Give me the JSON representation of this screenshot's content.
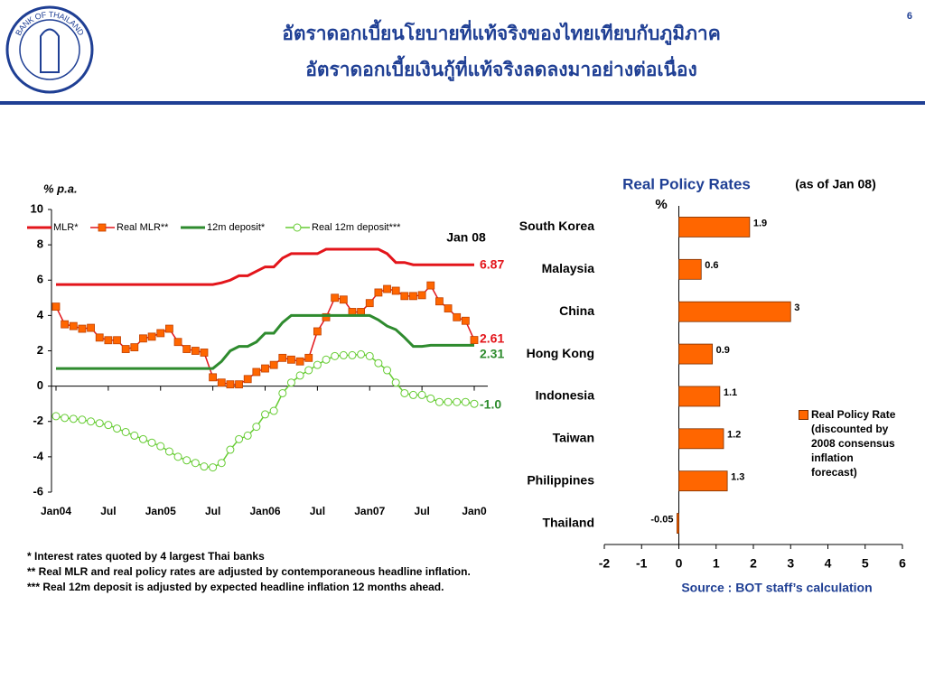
{
  "header": {
    "title_line1": "อัตราดอกเบี้ยนโยบายที่แท้จริงของไทยเทียบกับภูมิภาค",
    "title_line2": "อัตราดอกเบี้ยเงินกู้ที่แท้จริงลดลงมาอย่างต่อเนื่อง",
    "page_number": "6",
    "logo_text": "BANK OF THAILAND"
  },
  "chart_data": [
    {
      "type": "line",
      "y_label": "% p.a.",
      "categories": [
        "Jan04",
        null,
        null,
        null,
        null,
        null,
        "Jul",
        null,
        null,
        null,
        null,
        null,
        "Jan05",
        null,
        null,
        null,
        null,
        null,
        "Jul",
        null,
        null,
        null,
        null,
        null,
        "Jan06",
        null,
        null,
        null,
        null,
        null,
        "Jul",
        null,
        null,
        null,
        null,
        null,
        "Jan07",
        null,
        null,
        null,
        null,
        null,
        "Jul",
        null,
        null,
        null,
        null,
        null,
        "Jan0"
      ],
      "series": [
        {
          "name": "MLR*",
          "color": "#e3151b",
          "marker": null,
          "values": [
            5.75,
            5.75,
            5.75,
            5.75,
            5.75,
            5.75,
            5.75,
            5.75,
            5.75,
            5.75,
            5.75,
            5.75,
            5.75,
            5.75,
            5.75,
            5.75,
            5.75,
            5.75,
            5.75,
            5.85,
            6.0,
            6.25,
            6.25,
            6.5,
            6.75,
            6.75,
            7.25,
            7.5,
            7.5,
            7.5,
            7.5,
            7.75,
            7.75,
            7.75,
            7.75,
            7.75,
            7.75,
            7.75,
            7.5,
            7.0,
            7.0,
            6.87,
            6.87,
            6.87,
            6.87,
            6.87,
            6.87,
            6.87,
            6.87
          ]
        },
        {
          "name": "Real MLR**",
          "color": "#e3151b",
          "marker": "square",
          "marker_color": "#ff6600",
          "values": [
            4.5,
            3.5,
            3.4,
            3.25,
            3.3,
            2.75,
            2.6,
            2.6,
            2.1,
            2.2,
            2.7,
            2.8,
            3.0,
            3.25,
            2.5,
            2.1,
            2.0,
            1.9,
            0.5,
            0.2,
            0.1,
            0.1,
            0.4,
            0.8,
            1.0,
            1.2,
            1.6,
            1.5,
            1.4,
            1.6,
            3.1,
            3.9,
            5.0,
            4.9,
            4.2,
            4.2,
            4.7,
            5.3,
            5.5,
            5.4,
            5.1,
            5.1,
            5.15,
            5.7,
            4.8,
            4.4,
            3.9,
            3.7,
            2.61
          ]
        },
        {
          "name": "12m deposit*",
          "color": "#2e8b2e",
          "marker": null,
          "values": [
            1.0,
            1.0,
            1.0,
            1.0,
            1.0,
            1.0,
            1.0,
            1.0,
            1.0,
            1.0,
            1.0,
            1.0,
            1.0,
            1.0,
            1.0,
            1.0,
            1.0,
            1.0,
            1.0,
            1.4,
            2.0,
            2.25,
            2.25,
            2.5,
            3.0,
            3.0,
            3.6,
            4.0,
            4.0,
            4.0,
            4.0,
            4.0,
            4.0,
            4.0,
            4.0,
            4.0,
            4.0,
            3.75,
            3.4,
            3.2,
            2.75,
            2.25,
            2.25,
            2.31,
            2.31,
            2.31,
            2.31,
            2.31,
            2.31
          ]
        },
        {
          "name": "Real 12m deposit***",
          "color": "#66cc33",
          "marker": "circle",
          "marker_color": "#ffffff",
          "values": [
            -1.7,
            -1.8,
            -1.85,
            -1.9,
            -2.0,
            -2.1,
            -2.2,
            -2.4,
            -2.6,
            -2.8,
            -3.0,
            -3.2,
            -3.4,
            -3.7,
            -4.0,
            -4.2,
            -4.35,
            -4.55,
            -4.6,
            -4.35,
            -3.6,
            -3.0,
            -2.8,
            -2.3,
            -1.6,
            -1.4,
            -0.4,
            0.2,
            0.6,
            0.9,
            1.2,
            1.5,
            1.7,
            1.75,
            1.75,
            1.8,
            1.7,
            1.3,
            0.9,
            0.2,
            -0.4,
            -0.5,
            -0.5,
            -0.7,
            -0.9,
            -0.9,
            -0.9,
            -0.9,
            -1.0
          ]
        }
      ],
      "ylim": [
        -6,
        10
      ],
      "yticks": [
        10,
        8,
        6,
        4,
        2,
        0,
        -2,
        -4,
        -6
      ],
      "legend": "top",
      "annotations": [
        {
          "text": "Jan 08",
          "color": "#000000"
        },
        {
          "text": "6.87",
          "color": "#e3151b"
        },
        {
          "text": "2.61",
          "color": "#e3151b"
        },
        {
          "text": "2.31",
          "color": "#2e8b2e"
        },
        {
          "text": "-1.0",
          "color": "#2e8b2e"
        }
      ]
    },
    {
      "type": "bar",
      "orientation": "horizontal",
      "title": "Real Policy Rates",
      "subtitle": "(as of Jan 08)",
      "unit": "%",
      "categories": [
        "South Korea",
        "Malaysia",
        "China",
        "Hong Kong",
        "Indonesia",
        "Taiwan",
        "Philippines",
        "Thailand"
      ],
      "series": [
        {
          "name": "Real Policy Rate (discounted by 2008 consensus inflation forecast)",
          "color": "#ff6600",
          "values": [
            1.9,
            0.6,
            3,
            0.9,
            1.1,
            1.2,
            1.3,
            -0.05
          ]
        }
      ],
      "xlim": [
        -2,
        6
      ],
      "xticks": [
        -2,
        -1,
        0,
        1,
        2,
        3,
        4,
        5,
        6
      ],
      "source": "Source : BOT staff’s calculation"
    }
  ],
  "footnotes": [
    "* Interest rates quoted by 4 largest Thai banks",
    "** Real MLR and real policy rates are adjusted by contemporaneous headline inflation.",
    "*** Real 12m deposit is adjusted by expected headline inflation 12 months ahead."
  ]
}
